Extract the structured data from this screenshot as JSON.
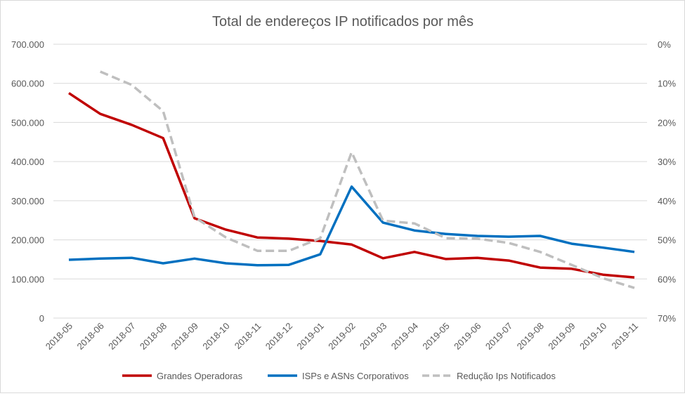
{
  "chart_data": {
    "type": "line",
    "title": "Total de endereços IP notificados por mês",
    "categories": [
      "2018-05",
      "2018-06",
      "2018-07",
      "2018-08",
      "2018-09",
      "2018-10",
      "2018-11",
      "2018-12",
      "2019-01",
      "2019-02",
      "2019-03",
      "2019-04",
      "2019-05",
      "2019-06",
      "2019-07",
      "2019-08",
      "2019-09",
      "2019-10",
      "2019-11"
    ],
    "y_left": {
      "ylim": [
        0,
        700000
      ],
      "ticks": [
        "0",
        "100.000",
        "200.000",
        "300.000",
        "400.000",
        "500.000",
        "600.000",
        "700.000"
      ]
    },
    "y_right": {
      "ylim": [
        0,
        70
      ],
      "inverted": true,
      "ticks": [
        "0%",
        "10%",
        "20%",
        "30%",
        "40%",
        "50%",
        "60%",
        "70%"
      ]
    },
    "grid": true,
    "legend_position": "bottom",
    "series": [
      {
        "name": "Grandes Operadoras",
        "axis": "left",
        "color": "#c00000",
        "style": "solid",
        "values": [
          575000,
          522000,
          494000,
          460000,
          255000,
          226000,
          206000,
          203000,
          197000,
          188000,
          153000,
          169000,
          151000,
          154000,
          147000,
          129000,
          126000,
          111000,
          104000
        ]
      },
      {
        "name": "ISPs e ASNs Corporativos",
        "axis": "left",
        "color": "#0070c0",
        "style": "solid",
        "values": [
          149000,
          152000,
          154000,
          140000,
          152000,
          140000,
          135000,
          136000,
          163000,
          336000,
          244000,
          224000,
          215000,
          210000,
          208000,
          210000,
          190000,
          180000,
          169000
        ]
      },
      {
        "name": "Redução Ips Notificados",
        "axis": "right",
        "color": "#bfbfbf",
        "style": "dashed",
        "values": [
          null,
          7.0,
          10.4,
          17.1,
          44.2,
          49.4,
          52.8,
          52.8,
          49.6,
          27.6,
          45.1,
          45.8,
          49.6,
          49.7,
          50.8,
          53.1,
          56.4,
          59.8,
          62.3
        ]
      }
    ]
  }
}
